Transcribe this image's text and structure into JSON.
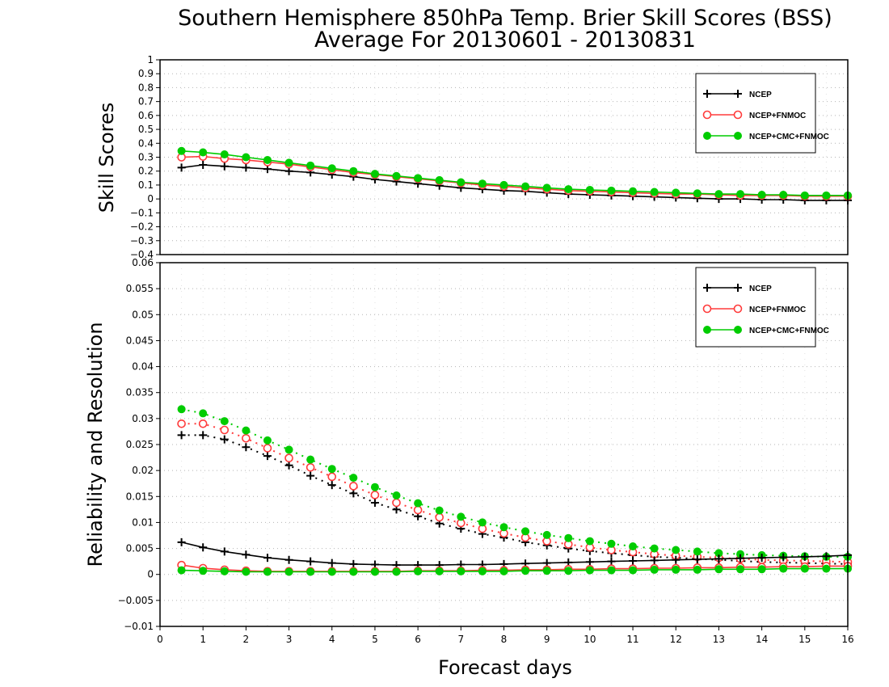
{
  "title": "Southern Hemisphere 850hPa Temp. Brier Skill Scores (BSS)",
  "subtitle": "Average For 20130601 - 20130831",
  "xlabel": "Forecast days",
  "x_ticks": [
    "0",
    "1",
    "2",
    "3",
    "4",
    "5",
    "6",
    "7",
    "8",
    "9",
    "10",
    "11",
    "12",
    "13",
    "14",
    "15",
    "16"
  ],
  "colors": {
    "NCEP": "#000000",
    "NCEP+FNMOC": "#ff3b3b",
    "NCEP+CMC+FNMOC": "#00cc00"
  },
  "chart_data": [
    {
      "type": "line",
      "ylabel": "Skill Scores",
      "xlim": [
        0,
        16
      ],
      "ylim": [
        -0.4,
        1
      ],
      "y_ticks": [
        "1",
        "0.9",
        "0.8",
        "0.7",
        "0.6",
        "0.5",
        "0.4",
        "0.3",
        "0.2",
        "0.1",
        "0",
        "−0.1",
        "−0.2",
        "−0.3",
        "−0.4"
      ],
      "grid": true,
      "legend_position": "top-right",
      "legend": [
        "NCEP",
        "NCEP+FNMOC",
        "NCEP+CMC+FNMOC"
      ],
      "x": [
        0.5,
        1,
        1.5,
        2,
        2.5,
        3,
        3.5,
        4,
        4.5,
        5,
        5.5,
        6,
        6.5,
        7,
        7.5,
        8,
        8.5,
        9,
        9.5,
        10,
        10.5,
        11,
        11.5,
        12,
        12.5,
        13,
        13.5,
        14,
        14.5,
        15,
        15.5,
        16
      ],
      "series": [
        {
          "name": "NCEP",
          "marker": "plus",
          "line": "solid",
          "values": [
            0.225,
            0.245,
            0.235,
            0.225,
            0.215,
            0.2,
            0.19,
            0.175,
            0.16,
            0.14,
            0.125,
            0.11,
            0.095,
            0.08,
            0.07,
            0.06,
            0.055,
            0.045,
            0.035,
            0.03,
            0.025,
            0.02,
            0.015,
            0.01,
            0.005,
            0.0,
            0.0,
            -0.005,
            -0.005,
            -0.01,
            -0.01,
            -0.01
          ]
        },
        {
          "name": "NCEP+FNMOC",
          "marker": "open-circle",
          "line": "solid",
          "values": [
            0.3,
            0.305,
            0.29,
            0.28,
            0.265,
            0.25,
            0.23,
            0.21,
            0.19,
            0.175,
            0.16,
            0.145,
            0.13,
            0.115,
            0.1,
            0.09,
            0.08,
            0.07,
            0.06,
            0.055,
            0.05,
            0.045,
            0.04,
            0.035,
            0.035,
            0.03,
            0.025,
            0.025,
            0.025,
            0.02,
            0.02,
            0.02
          ]
        },
        {
          "name": "NCEP+CMC+FNMOC",
          "marker": "filled-circle",
          "line": "solid",
          "values": [
            0.345,
            0.335,
            0.32,
            0.3,
            0.28,
            0.26,
            0.24,
            0.22,
            0.2,
            0.18,
            0.165,
            0.15,
            0.135,
            0.12,
            0.11,
            0.1,
            0.09,
            0.08,
            0.07,
            0.065,
            0.06,
            0.055,
            0.05,
            0.045,
            0.04,
            0.035,
            0.035,
            0.03,
            0.03,
            0.025,
            0.025,
            0.025
          ]
        }
      ]
    },
    {
      "type": "line",
      "ylabel": "Reliability and Resolution",
      "xlim": [
        0,
        16
      ],
      "ylim": [
        -0.01,
        0.06
      ],
      "y_ticks": [
        "0.06",
        "0.055",
        "0.05",
        "0.045",
        "0.04",
        "0.035",
        "0.03",
        "0.025",
        "0.02",
        "0.015",
        "0.01",
        "0.005",
        "0",
        "−0.005",
        "−0.01"
      ],
      "grid": true,
      "legend_position": "top-right",
      "legend": [
        "NCEP",
        "NCEP+FNMOC",
        "NCEP+CMC+FNMOC"
      ],
      "x": [
        0.5,
        1,
        1.5,
        2,
        2.5,
        3,
        3.5,
        4,
        4.5,
        5,
        5.5,
        6,
        6.5,
        7,
        7.5,
        8,
        8.5,
        9,
        9.5,
        10,
        10.5,
        11,
        11.5,
        12,
        12.5,
        13,
        13.5,
        14,
        14.5,
        15,
        15.5,
        16
      ],
      "series": [
        {
          "name": "NCEP",
          "metric": "resolution",
          "marker": "plus",
          "line": "dotted",
          "values": [
            0.0268,
            0.0268,
            0.026,
            0.0245,
            0.0228,
            0.021,
            0.019,
            0.0172,
            0.0156,
            0.0138,
            0.0125,
            0.0112,
            0.0098,
            0.0088,
            0.0078,
            0.0071,
            0.0062,
            0.0056,
            0.005,
            0.0045,
            0.0041,
            0.0037,
            0.0034,
            0.0032,
            0.003,
            0.0028,
            0.0026,
            0.0024,
            0.0023,
            0.0022,
            0.0021,
            0.002
          ]
        },
        {
          "name": "NCEP+FNMOC",
          "metric": "resolution",
          "marker": "open-circle",
          "line": "dotted",
          "values": [
            0.029,
            0.029,
            0.0278,
            0.0262,
            0.0243,
            0.0224,
            0.0206,
            0.0188,
            0.017,
            0.0153,
            0.0138,
            0.0124,
            0.011,
            0.0099,
            0.0088,
            0.0079,
            0.0071,
            0.0064,
            0.0058,
            0.0052,
            0.0047,
            0.0043,
            0.0039,
            0.0036,
            0.0034,
            0.0032,
            0.003,
            0.0028,
            0.0027,
            0.0026,
            0.0025,
            0.0024
          ]
        },
        {
          "name": "NCEP+CMC+FNMOC",
          "metric": "resolution",
          "marker": "filled-circle",
          "line": "dotted",
          "values": [
            0.0318,
            0.031,
            0.0295,
            0.0277,
            0.0258,
            0.024,
            0.0221,
            0.0203,
            0.0186,
            0.0168,
            0.0152,
            0.0137,
            0.0123,
            0.0111,
            0.01,
            0.0091,
            0.0083,
            0.0076,
            0.007,
            0.0064,
            0.0059,
            0.0054,
            0.005,
            0.0047,
            0.0044,
            0.0041,
            0.0039,
            0.0037,
            0.0036,
            0.0035,
            0.0034,
            0.0034
          ]
        },
        {
          "name": "NCEP",
          "metric": "reliability",
          "marker": "plus",
          "line": "solid",
          "values": [
            0.0062,
            0.0052,
            0.0044,
            0.0038,
            0.0032,
            0.0028,
            0.0025,
            0.0022,
            0.002,
            0.0019,
            0.0018,
            0.0018,
            0.0018,
            0.0019,
            0.0019,
            0.002,
            0.0021,
            0.0022,
            0.0023,
            0.0024,
            0.0025,
            0.0026,
            0.0027,
            0.0028,
            0.0029,
            0.003,
            0.0031,
            0.0032,
            0.0033,
            0.0034,
            0.0035,
            0.0037
          ]
        },
        {
          "name": "NCEP+FNMOC",
          "metric": "reliability",
          "marker": "open-circle",
          "line": "solid",
          "values": [
            0.0018,
            0.0012,
            0.0009,
            0.0007,
            0.0006,
            0.0006,
            0.0006,
            0.0006,
            0.0006,
            0.0006,
            0.0006,
            0.0007,
            0.0007,
            0.0007,
            0.0008,
            0.0008,
            0.0009,
            0.0009,
            0.001,
            0.001,
            0.0011,
            0.0011,
            0.0012,
            0.0012,
            0.0013,
            0.0013,
            0.0014,
            0.0014,
            0.0015,
            0.0015,
            0.0016,
            0.0016
          ]
        },
        {
          "name": "NCEP+CMC+FNMOC",
          "metric": "reliability",
          "marker": "filled-circle",
          "line": "solid",
          "values": [
            0.0008,
            0.0007,
            0.0006,
            0.0005,
            0.0005,
            0.0005,
            0.0005,
            0.0005,
            0.0005,
            0.0005,
            0.0005,
            0.0006,
            0.0006,
            0.0006,
            0.0006,
            0.0006,
            0.0007,
            0.0007,
            0.0007,
            0.0008,
            0.0008,
            0.0008,
            0.0009,
            0.0009,
            0.0009,
            0.001,
            0.001,
            0.001,
            0.0011,
            0.0011,
            0.0011,
            0.0011
          ]
        }
      ]
    }
  ]
}
